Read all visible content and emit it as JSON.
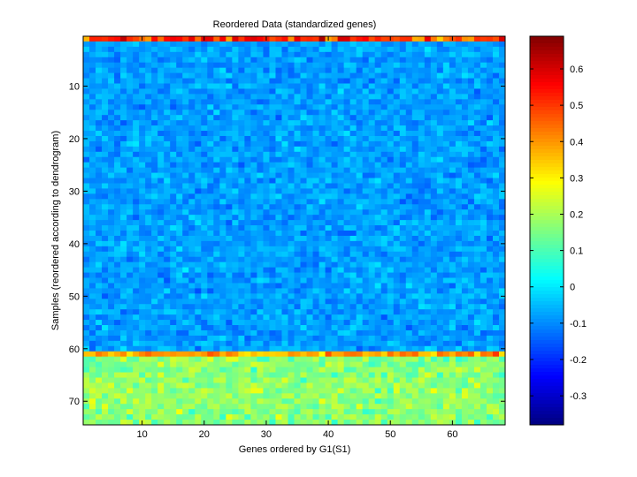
{
  "chart_data": {
    "type": "heatmap",
    "title": "Reordered Data (standardized genes)",
    "xlabel": "Genes ordered by G1(S1)",
    "ylabel": "Samples (reordered according to dendrogram)",
    "n_cols": 68,
    "n_rows": 74,
    "xlim": [
      0.5,
      68.5
    ],
    "ylim": [
      0.5,
      74.5
    ],
    "x_ticks": [
      10,
      20,
      30,
      40,
      50,
      60
    ],
    "y_ticks": [
      10,
      20,
      30,
      40,
      50,
      60,
      70
    ],
    "colormap": "jet",
    "clim": [
      -0.38,
      0.69
    ],
    "colorbar_ticks": [
      -0.3,
      -0.2,
      -0.1,
      0,
      0.1,
      0.2,
      0.3,
      0.4,
      0.5,
      0.6
    ],
    "colorbar_tick_labels": [
      "-0.3",
      "-0.2",
      "-0.1",
      "0",
      "0.1",
      "0.2",
      "0.3",
      "0.4",
      "0.5",
      "0.6"
    ],
    "row_bands": [
      {
        "rows": [
          1,
          1
        ],
        "mean": 0.5,
        "spread": 0.12
      },
      {
        "rows": [
          2,
          60
        ],
        "mean": -0.08,
        "spread": 0.05
      },
      {
        "rows": [
          61,
          61
        ],
        "mean": 0.4,
        "spread": 0.08
      },
      {
        "rows": [
          62,
          74
        ],
        "mean": 0.17,
        "spread": 0.07
      }
    ],
    "grid": false
  }
}
